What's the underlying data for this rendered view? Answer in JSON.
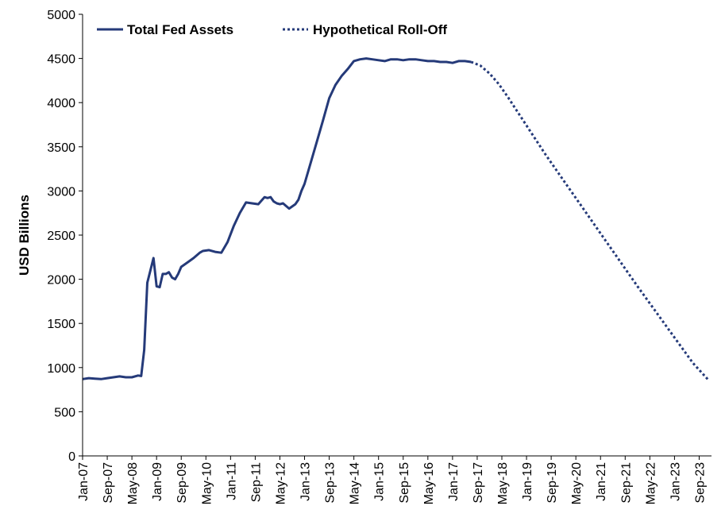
{
  "chart_data": {
    "type": "line",
    "title": "",
    "xlabel": "",
    "ylabel": "USD Billions",
    "ylim": [
      0,
      5000
    ],
    "yticks": [
      0,
      500,
      1000,
      1500,
      2000,
      2500,
      3000,
      3500,
      4000,
      4500,
      5000
    ],
    "xlim": [
      "2007-01",
      "2024-01"
    ],
    "xtick_labels": [
      "Jan-07",
      "Sep-07",
      "May-08",
      "Jan-09",
      "Sep-09",
      "May-10",
      "Jan-11",
      "Sep-11",
      "May-12",
      "Jan-13",
      "Sep-13",
      "May-14",
      "Jan-15",
      "Sep-15",
      "May-16",
      "Jan-17",
      "Sep-17",
      "May-18",
      "Jan-19",
      "Sep-19",
      "May-20",
      "Jan-21",
      "Sep-21",
      "May-22",
      "Jan-23",
      "Sep-23"
    ],
    "grid": false,
    "legend_position": "top-left",
    "series": [
      {
        "name": "Total Fed Assets",
        "style": "solid",
        "color": "#253A79",
        "x": [
          "2007-01",
          "2007-03",
          "2007-05",
          "2007-07",
          "2007-09",
          "2007-11",
          "2008-01",
          "2008-03",
          "2008-05",
          "2008-07",
          "2008-08",
          "2008-09",
          "2008-10",
          "2008-11",
          "2008-12",
          "2009-01",
          "2009-02",
          "2009-03",
          "2009-04",
          "2009-05",
          "2009-06",
          "2009-07",
          "2009-08",
          "2009-09",
          "2009-11",
          "2010-01",
          "2010-03",
          "2010-04",
          "2010-06",
          "2010-08",
          "2010-10",
          "2010-12",
          "2011-02",
          "2011-04",
          "2011-06",
          "2011-08",
          "2011-10",
          "2011-12",
          "2012-01",
          "2012-02",
          "2012-03",
          "2012-04",
          "2012-05",
          "2012-06",
          "2012-08",
          "2012-10",
          "2012-11",
          "2012-12",
          "2013-01",
          "2013-03",
          "2013-05",
          "2013-07",
          "2013-09",
          "2013-11",
          "2014-01",
          "2014-03",
          "2014-05",
          "2014-07",
          "2014-09",
          "2014-11",
          "2015-01",
          "2015-03",
          "2015-05",
          "2015-07",
          "2015-09",
          "2015-11",
          "2016-01",
          "2016-03",
          "2016-05",
          "2016-07",
          "2016-09",
          "2016-11",
          "2017-01",
          "2017-03",
          "2017-05",
          "2017-07"
        ],
        "values": [
          870,
          880,
          875,
          870,
          880,
          890,
          900,
          890,
          890,
          910,
          905,
          1200,
          1960,
          2100,
          2240,
          1920,
          1910,
          2060,
          2060,
          2080,
          2020,
          2000,
          2060,
          2140,
          2190,
          2240,
          2300,
          2320,
          2330,
          2310,
          2300,
          2420,
          2600,
          2750,
          2870,
          2860,
          2850,
          2930,
          2920,
          2930,
          2880,
          2860,
          2850,
          2860,
          2800,
          2850,
          2900,
          3000,
          3080,
          3320,
          3560,
          3800,
          4050,
          4200,
          4300,
          4380,
          4470,
          4490,
          4500,
          4490,
          4480,
          4470,
          4490,
          4490,
          4480,
          4490,
          4490,
          4480,
          4470,
          4470,
          4460,
          4460,
          4450,
          4470,
          4470,
          4460
        ]
      },
      {
        "name": "Hypothetical Roll-Off",
        "style": "dotted",
        "color": "#253A79",
        "x": [
          "2017-07",
          "2017-10",
          "2018-01",
          "2018-04",
          "2018-07",
          "2018-10",
          "2019-01",
          "2019-07",
          "2020-01",
          "2020-07",
          "2021-01",
          "2021-07",
          "2022-01",
          "2022-07",
          "2023-01",
          "2023-07",
          "2023-12"
        ],
        "values": [
          4460,
          4420,
          4330,
          4210,
          4060,
          3900,
          3740,
          3420,
          3120,
          2820,
          2520,
          2220,
          1920,
          1630,
          1340,
          1050,
          860
        ]
      }
    ]
  }
}
